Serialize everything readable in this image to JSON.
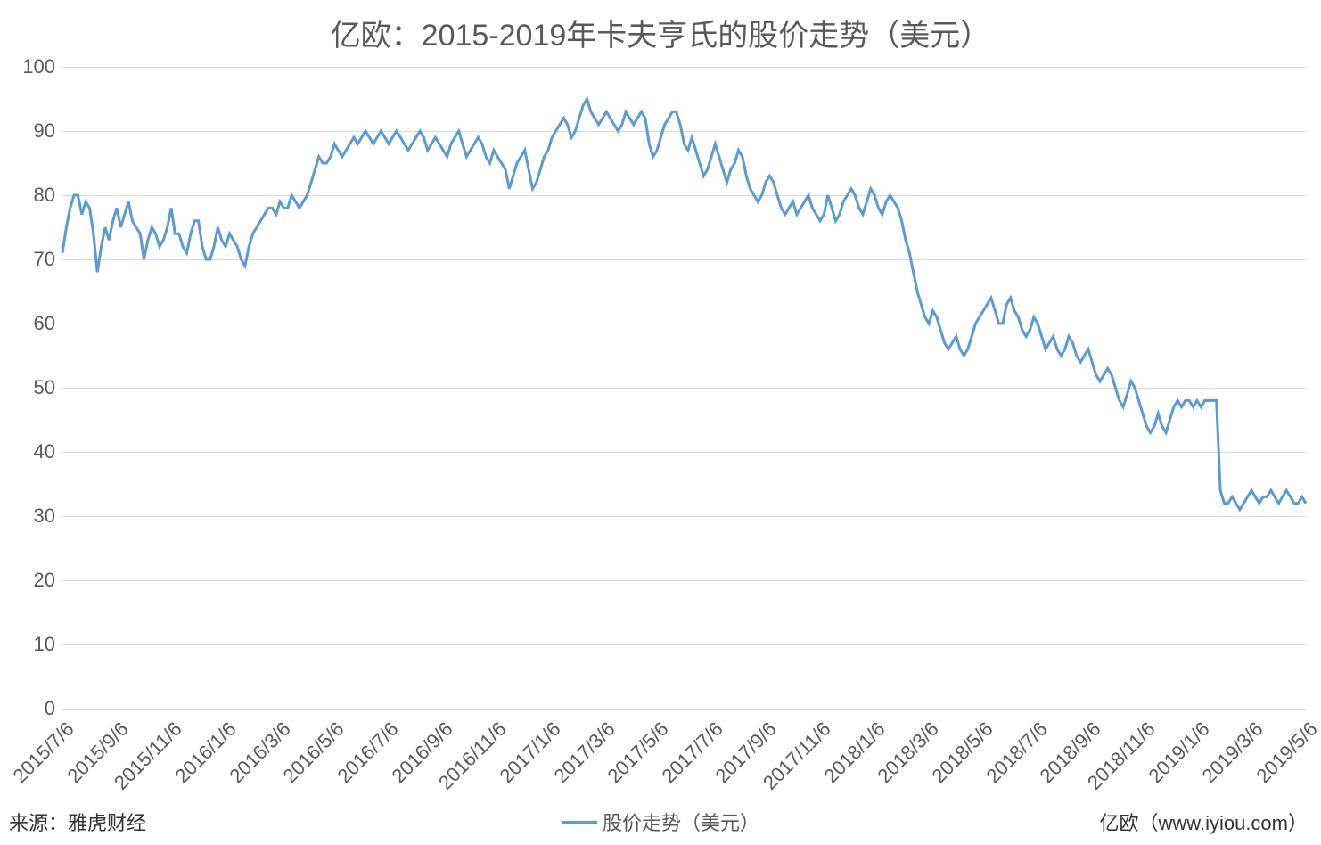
{
  "chart": {
    "type": "line",
    "title": "亿欧：2015-2019年卡夫亨氏的股价走势（美元）",
    "title_fontsize": 34,
    "title_color": "#595959",
    "background_color": "#ffffff",
    "grid_color": "#d9d9d9",
    "axis_label_color": "#595959",
    "axis_label_fontsize": 22,
    "line_color": "#5b9bd5",
    "line_width": 3,
    "ylim": [
      0,
      100
    ],
    "ytick_step": 10,
    "yticks": [
      0,
      10,
      20,
      30,
      40,
      50,
      60,
      70,
      80,
      90,
      100
    ],
    "xticks": [
      "2015/7/6",
      "2015/9/6",
      "2015/11/6",
      "2016/1/6",
      "2016/3/6",
      "2016/5/6",
      "2016/7/6",
      "2016/9/6",
      "2016/11/6",
      "2017/1/6",
      "2017/3/6",
      "2017/5/6",
      "2017/7/6",
      "2017/9/6",
      "2017/11/6",
      "2018/1/6",
      "2018/3/6",
      "2018/5/6",
      "2018/7/6",
      "2018/9/6",
      "2018/11/6",
      "2019/1/6",
      "2019/3/6",
      "2019/5/6"
    ],
    "legend_label": "股价走势（美元）",
    "series": {
      "name": "股价走势（美元）",
      "values": [
        71,
        75,
        78,
        80,
        80,
        77,
        79,
        78,
        74,
        68,
        72,
        75,
        73,
        76,
        78,
        75,
        77,
        79,
        76,
        75,
        74,
        70,
        73,
        75,
        74,
        72,
        73,
        75,
        78,
        74,
        74,
        72,
        71,
        74,
        76,
        76,
        72,
        70,
        70,
        72,
        75,
        73,
        72,
        74,
        73,
        72,
        70,
        69,
        72,
        74,
        75,
        76,
        77,
        78,
        78,
        77,
        79,
        78,
        78,
        80,
        79,
        78,
        79,
        80,
        82,
        84,
        86,
        85,
        85,
        86,
        88,
        87,
        86,
        87,
        88,
        89,
        88,
        89,
        90,
        89,
        88,
        89,
        90,
        89,
        88,
        89,
        90,
        89,
        88,
        87,
        88,
        89,
        90,
        89,
        87,
        88,
        89,
        88,
        87,
        86,
        88,
        89,
        90,
        88,
        86,
        87,
        88,
        89,
        88,
        86,
        85,
        87,
        86,
        85,
        84,
        81,
        83,
        85,
        86,
        87,
        84,
        81,
        82,
        84,
        86,
        87,
        89,
        90,
        91,
        92,
        91,
        89,
        90,
        92,
        94,
        95,
        93,
        92,
        91,
        92,
        93,
        92,
        91,
        90,
        91,
        93,
        92,
        91,
        92,
        93,
        92,
        88,
        86,
        87,
        89,
        91,
        92,
        93,
        93,
        91,
        88,
        87,
        89,
        87,
        85,
        83,
        84,
        86,
        88,
        86,
        84,
        82,
        84,
        85,
        87,
        86,
        83,
        81,
        80,
        79,
        80,
        82,
        83,
        82,
        80,
        78,
        77,
        78,
        79,
        77,
        78,
        79,
        80,
        78,
        77,
        76,
        77,
        80,
        78,
        76,
        77,
        79,
        80,
        81,
        80,
        78,
        77,
        79,
        81,
        80,
        78,
        77,
        79,
        80,
        79,
        78,
        76,
        73,
        71,
        68,
        65,
        63,
        61,
        60,
        62,
        61,
        59,
        57,
        56,
        57,
        58,
        56,
        55,
        56,
        58,
        60,
        61,
        62,
        63,
        64,
        62,
        60,
        60,
        63,
        64,
        62,
        61,
        59,
        58,
        59,
        61,
        60,
        58,
        56,
        57,
        58,
        56,
        55,
        56,
        58,
        57,
        55,
        54,
        55,
        56,
        54,
        52,
        51,
        52,
        53,
        52,
        50,
        48,
        47,
        49,
        51,
        50,
        48,
        46,
        44,
        43,
        44,
        46,
        44,
        43,
        45,
        47,
        48,
        47,
        48,
        48,
        47,
        48,
        47,
        48,
        48,
        48,
        48,
        34,
        32,
        32,
        33,
        32,
        31,
        32,
        33,
        34,
        33,
        32,
        33,
        33,
        34,
        33,
        32,
        33,
        34,
        33,
        32,
        32,
        33,
        32
      ]
    }
  },
  "footer": {
    "source": "来源：雅虎财经",
    "brand": "亿欧（www.iyiou.com）"
  }
}
